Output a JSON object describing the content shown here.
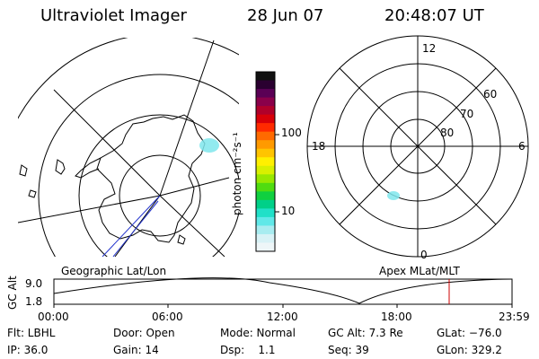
{
  "header": {
    "title": "Ultraviolet Imager",
    "date": "28 Jun 07",
    "time": "20:48:07 UT"
  },
  "colorbar": {
    "unit": "photon cm⁻²s⁻¹",
    "ticks": [
      "100",
      "10"
    ],
    "colors": [
      "#111111",
      "#2a0030",
      "#5a0055",
      "#8a004a",
      "#b0002a",
      "#d80008",
      "#ff2a00",
      "#ff6a00",
      "#ff9a00",
      "#ffc400",
      "#fff000",
      "#d8f000",
      "#98e800",
      "#50dc10",
      "#10d040",
      "#00d088",
      "#20e0c8",
      "#60e8e8",
      "#a8ecf0",
      "#d8f2f6",
      "#eef6f8"
    ]
  },
  "left_panel": {
    "label": "Geographic Lat/Lon",
    "auroral_patch_color": "#7fe6ec"
  },
  "right_panel": {
    "label": "Apex MLat/MLT",
    "mlt_labels": {
      "top": "12",
      "left": "18",
      "right": "6",
      "bottom": "0"
    },
    "mlat_labels": [
      "60",
      "70",
      "80"
    ],
    "auroral_patch_color": "#7fe6ec"
  },
  "altitude_plot": {
    "ylabel": "GC Alt",
    "yticks": [
      "9.0",
      "1.8"
    ],
    "xticks": [
      "00:00",
      "06:00",
      "12:00",
      "18:00",
      "23:59"
    ],
    "marker_color": "#cc0000",
    "marker_time": "20:48:07"
  },
  "info": {
    "flt": "Flt: LBHL",
    "ip": "IP: 36.0",
    "door": "Door: Open",
    "gain": "Gain: 14",
    "mode": "Mode: Normal",
    "dsp": "Dsp:    1.1",
    "gcalt": "GC Alt: 7.3 Re",
    "seq": "Seq: 39",
    "glat": "GLat: −76.0",
    "glon": "GLon: 329.2"
  }
}
